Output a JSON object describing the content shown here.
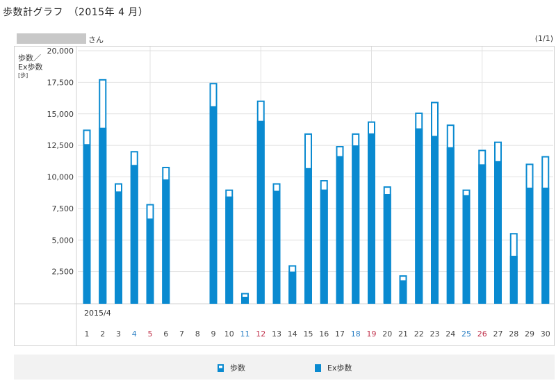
{
  "page": {
    "title": "歩数計グラフ　（2015年 4 月）",
    "user_suffix": "さん",
    "page_count": "(1/1)"
  },
  "colors": {
    "bar": "#0a8ad0",
    "weekday_text": "#444444",
    "saturday_text": "#2a7fc4",
    "sunday_text": "#c0304a",
    "grid": "#e1e1e1"
  },
  "chart_data": {
    "type": "bar",
    "ylabel_lines": [
      "歩数／",
      "Ex歩数"
    ],
    "yunit": "[歩]",
    "ylim": [
      0,
      20000
    ],
    "yticks": [
      "2,500",
      "5,000",
      "7,500",
      "10,000",
      "12,500",
      "15,000",
      "17,500",
      "20,000"
    ],
    "ytick_values": [
      2500,
      5000,
      7500,
      10000,
      12500,
      15000,
      17500,
      20000
    ],
    "month_label": "2015/4",
    "categories": [
      "1",
      "2",
      "3",
      "4",
      "5",
      "6",
      "7",
      "8",
      "9",
      "10",
      "11",
      "12",
      "13",
      "14",
      "15",
      "16",
      "17",
      "18",
      "19",
      "20",
      "21",
      "22",
      "23",
      "24",
      "25",
      "26",
      "27",
      "28",
      "29",
      "30"
    ],
    "day_types": [
      "w",
      "w",
      "w",
      "sat",
      "sun",
      "w",
      "w",
      "w",
      "w",
      "w",
      "sat",
      "sun",
      "w",
      "w",
      "w",
      "w",
      "w",
      "sat",
      "sun",
      "w",
      "w",
      "w",
      "w",
      "w",
      "sat",
      "sun",
      "w",
      "w",
      "w",
      "w"
    ],
    "series": [
      {
        "name": "歩数",
        "values": [
          13750,
          17750,
          9500,
          12050,
          7850,
          10800,
          0,
          0,
          17450,
          9000,
          800,
          16050,
          9500,
          3000,
          13450,
          9750,
          12450,
          13450,
          14400,
          9250,
          2200,
          15100,
          15950,
          14150,
          9000,
          12150,
          12800,
          5550,
          11050,
          11650
        ]
      },
      {
        "name": "Ex歩数",
        "values": [
          12600,
          13900,
          8850,
          10950,
          6700,
          9800,
          0,
          0,
          15600,
          8450,
          500,
          14450,
          8900,
          2500,
          10700,
          9000,
          11650,
          12500,
          13450,
          8650,
          1800,
          13850,
          13250,
          12350,
          8550,
          11000,
          11250,
          3750,
          9150,
          9150
        ]
      }
    ],
    "grid": true,
    "legend": "bottom-center"
  },
  "legend": {
    "steps_label": "歩数",
    "ex_steps_label": "Ex歩数"
  }
}
